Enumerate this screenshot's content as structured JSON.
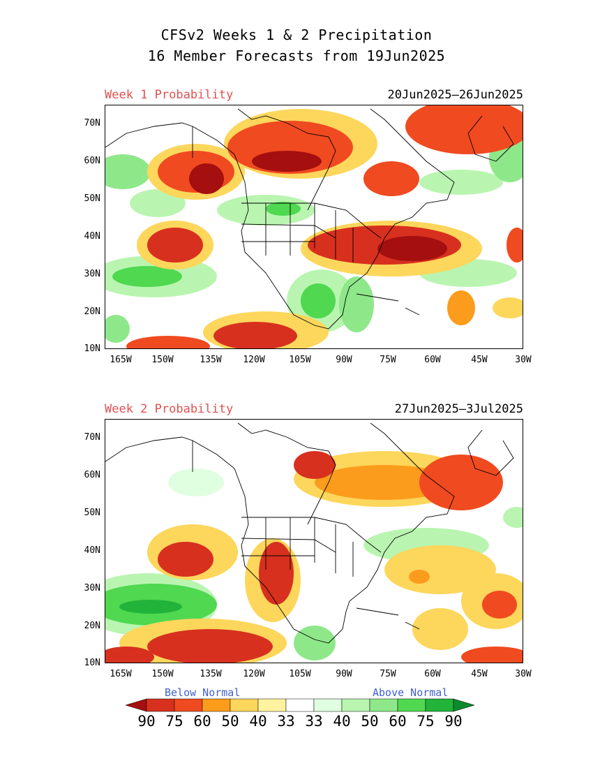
{
  "title_line1": "CFSv2 Weeks 1 & 2 Precipitation",
  "title_line2": "16 Member Forecasts from 19Jun2025",
  "axes": {
    "lat_labels": [
      "70N",
      "60N",
      "50N",
      "40N",
      "30N",
      "20N",
      "10N"
    ],
    "lon_labels": [
      "165W",
      "150W",
      "135W",
      "120W",
      "105W",
      "90W",
      "75W",
      "60W",
      "45W",
      "30W"
    ]
  },
  "panels": [
    {
      "label": "Week 1 Probability",
      "range": "20Jun2025—26Jun2025"
    },
    {
      "label": "Week 2 Probability",
      "range": "27Jun2025—3Jul2025"
    }
  ],
  "legend": {
    "below_label": "Below Normal",
    "above_label": "Above Normal",
    "ticks": [
      "90",
      "75",
      "60",
      "50",
      "40",
      "33",
      "33",
      "40",
      "50",
      "60",
      "75",
      "90"
    ],
    "colors": [
      "#a50f0f",
      "#d7301f",
      "#f04a20",
      "#fc9c1c",
      "#fdd65c",
      "#fff3a0",
      "#ffffff",
      "#e0ffe0",
      "#b9f5b0",
      "#8ee88a",
      "#4fd850",
      "#22b33a",
      "#0d8a2c"
    ]
  }
}
